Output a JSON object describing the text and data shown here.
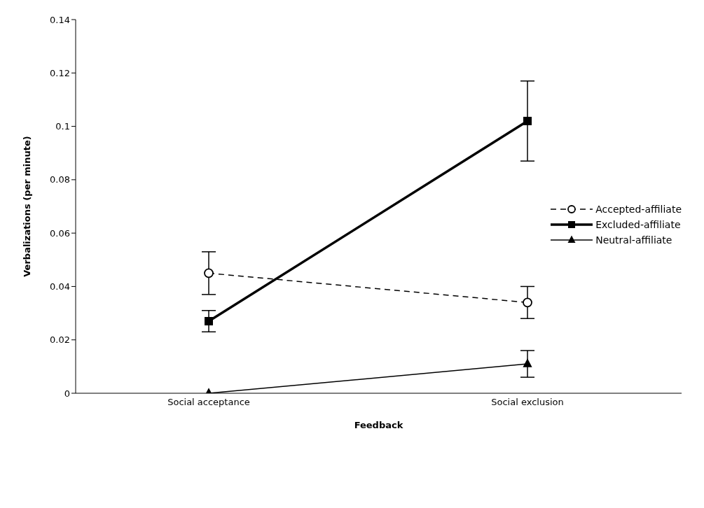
{
  "chart_data": {
    "type": "line",
    "xlabel": "Feedback",
    "ylabel": "Verbalizations (per minute)",
    "categories": [
      "Social acceptance",
      "Social exclusion"
    ],
    "series": [
      {
        "name": "Accepted-affiliate",
        "color": "#000000",
        "values": [
          0.045,
          0.034
        ],
        "errors": [
          [
            0.037,
            0.053
          ],
          [
            0.028,
            0.04
          ]
        ],
        "marker": "circle",
        "line_style": "dashed"
      },
      {
        "name": "Excluded-affiliate",
        "color": "#000000",
        "values": [
          0.027,
          0.102
        ],
        "errors": [
          [
            0.023,
            0.031
          ],
          [
            0.087,
            0.117
          ]
        ],
        "marker": "square",
        "line_style": "solid"
      },
      {
        "name": "Neutral-affiliate",
        "color": "#000000",
        "values": [
          0,
          0.011
        ],
        "errors": [
          null,
          [
            0.006,
            0.016
          ]
        ],
        "marker": "triangle",
        "line_style": "solid"
      }
    ],
    "ylim": [
      0,
      0.14
    ],
    "yticks": [
      0,
      0.02,
      0.04,
      0.06,
      0.08,
      0.1,
      0.12,
      0.14
    ],
    "grid": false,
    "legend": "right"
  }
}
